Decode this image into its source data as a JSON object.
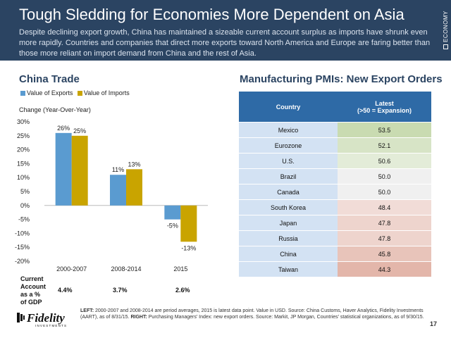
{
  "header": {
    "title": "Tough Sledding for Economies More Dependent on Asia",
    "subtitle": "Despite declining export growth, China has maintained a sizeable current account surplus as imports have shrunk even more rapidly. Countries and companies that direct more exports toward North America and Europe are faring better than those more reliant on import demand from China and the rest of Asia.",
    "side_tag": "ECONOMY"
  },
  "left_panel": {
    "title": "China Trade",
    "legend": [
      {
        "label": "Value of Exports",
        "color": "#5a9bd0"
      },
      {
        "label": "Value of Imports",
        "color": "#c9a400"
      }
    ],
    "y_caption": "Change (Year-Over-Year)",
    "current_account": {
      "label_lines": [
        "Current",
        "Account",
        "as a %",
        "of GDP"
      ],
      "values": [
        "4.4%",
        "3.7%",
        "2.6%"
      ]
    }
  },
  "chart_data": {
    "type": "bar",
    "title": "China Trade",
    "ylabel": "Change (Year-Over-Year)",
    "categories": [
      "2000-2007",
      "2008-2014",
      "2015"
    ],
    "series": [
      {
        "name": "Value of Exports",
        "values": [
          26,
          11,
          -5
        ],
        "labels": [
          "26%",
          "11%",
          "-5%"
        ],
        "color": "#5a9bd0"
      },
      {
        "name": "Value of Imports",
        "values": [
          25,
          13,
          -13
        ],
        "labels": [
          "25%",
          "13%",
          "-13%"
        ],
        "color": "#c9a400"
      }
    ],
    "ylim": [
      -20,
      30
    ],
    "yticks": [
      30,
      25,
      20,
      15,
      10,
      5,
      0,
      -5,
      -10,
      -15,
      -20
    ],
    "ytick_labels": [
      "30%",
      "25%",
      "20%",
      "15%",
      "10%",
      "5%",
      "0%",
      "-5%",
      "-10%",
      "-15%",
      "-20%"
    ],
    "grid": false,
    "legend_position": "top-left"
  },
  "right_panel": {
    "title": "Manufacturing PMIs: New Export Orders",
    "header_country": "Country",
    "header_latest_line1": "Latest",
    "header_latest_line2": "(>50 = Expansion)",
    "rows": [
      {
        "country": "Mexico",
        "value": "53.5",
        "color": "#c9dbb1"
      },
      {
        "country": "Eurozone",
        "value": "52.1",
        "color": "#d7e4c6"
      },
      {
        "country": "U.S.",
        "value": "50.6",
        "color": "#e3ecd8"
      },
      {
        "country": "Brazil",
        "value": "50.0",
        "color": "#f0f0f0"
      },
      {
        "country": "Canada",
        "value": "50.0",
        "color": "#f0f0f0"
      },
      {
        "country": "South Korea",
        "value": "48.4",
        "color": "#f1dcd7"
      },
      {
        "country": "Japan",
        "value": "47.8",
        "color": "#eed4cd"
      },
      {
        "country": "Russia",
        "value": "47.8",
        "color": "#eed4cd"
      },
      {
        "country": "China",
        "value": "45.8",
        "color": "#e8c4ba"
      },
      {
        "country": "Taiwan",
        "value": "44.3",
        "color": "#e3b6aa"
      }
    ]
  },
  "footer": {
    "left_label": "LEFT:",
    "left_text": " 2000-2007 and 2008-2014 are period averages, 2015 is latest data point. Value in USD. Source: China Customs, Haver Analytics, Fidelity Investments (AART), as of 8/31/15. ",
    "right_label": "RIGHT:",
    "right_text": " Purchasing Managers' Index: new export orders. Source: Markit, JP Morgan, Countries' statistical organizations, as of 9/30/15.",
    "logo_text": "Fidelity",
    "logo_subtext": "INVESTMENTS",
    "page_number": "17"
  }
}
